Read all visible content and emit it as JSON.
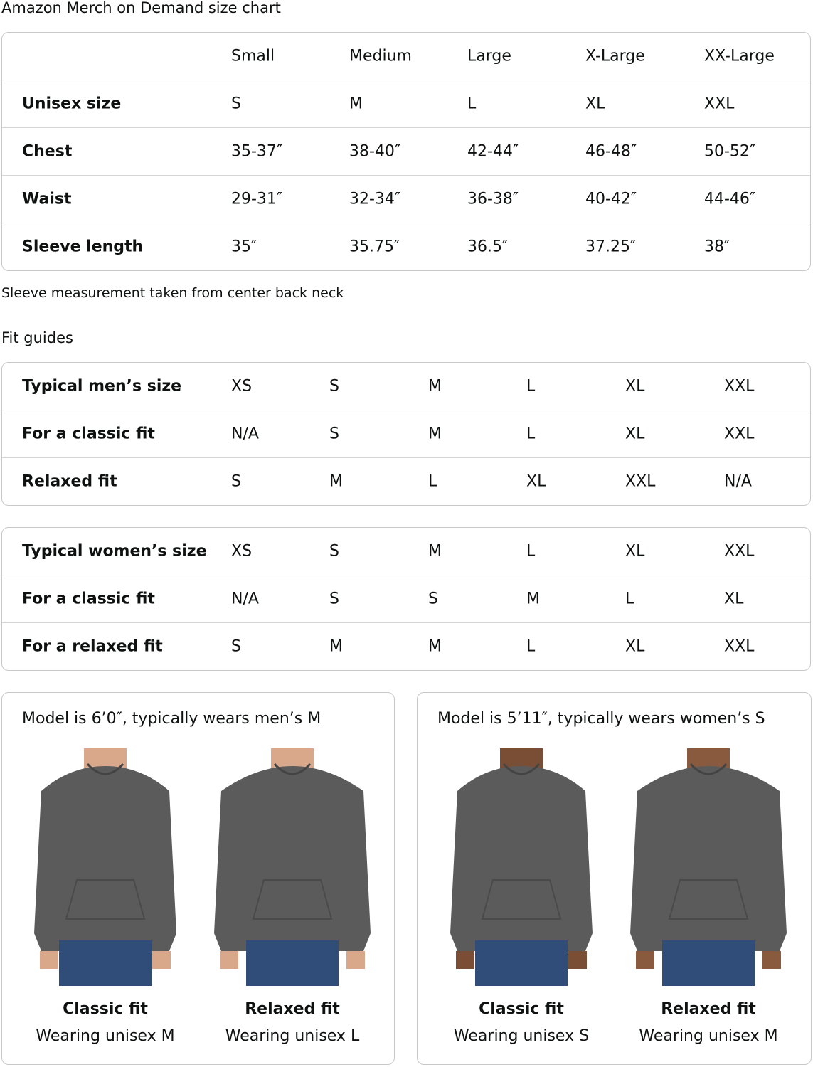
{
  "title": "Amazon Merch on Demand size chart",
  "size_chart": {
    "headers": [
      "",
      "Small",
      "Medium",
      "Large",
      "X-Large",
      "XX-Large"
    ],
    "rows": [
      {
        "label": "Unisex size",
        "values": [
          "S",
          "M",
          "L",
          "XL",
          "XXL"
        ]
      },
      {
        "label": "Chest",
        "values": [
          "35-37″",
          "38-40″",
          "42-44″",
          "46-48″",
          "50-52″"
        ]
      },
      {
        "label": "Waist",
        "values": [
          "29-31″",
          "32-34″",
          "36-38″",
          "40-42″",
          "44-46″"
        ]
      },
      {
        "label": "Sleeve length",
        "values": [
          "35″",
          "35.75″",
          "36.5″",
          "37.25″",
          "38″"
        ]
      }
    ]
  },
  "note": "Sleeve measurement taken from center back neck",
  "fit_guides_title": "Fit guides",
  "mens_fit": [
    {
      "label": "Typical men’s size",
      "values": [
        "XS",
        "S",
        "M",
        "L",
        "XL",
        "XXL"
      ]
    },
    {
      "label": "For a classic fit",
      "values": [
        "N/A",
        "S",
        "M",
        "L",
        "XL",
        "XXL"
      ]
    },
    {
      "label": "Relaxed fit",
      "values": [
        "S",
        "M",
        "L",
        "XL",
        "XXL",
        "N/A"
      ]
    }
  ],
  "womens_fit": [
    {
      "label": "Typical women’s size",
      "values": [
        "XS",
        "S",
        "M",
        "L",
        "XL",
        "XXL"
      ]
    },
    {
      "label": "For a classic fit",
      "values": [
        "N/A",
        "S",
        "S",
        "M",
        "L",
        "XL"
      ]
    },
    {
      "label": "For a relaxed fit",
      "values": [
        "S",
        "M",
        "M",
        "L",
        "XL",
        "XXL"
      ]
    }
  ],
  "models": [
    {
      "caption": "Model is 6’0″, typically wears men’s M",
      "figures": [
        {
          "fit": "Classic fit",
          "wearing": "Wearing unisex M"
        },
        {
          "fit": "Relaxed fit",
          "wearing": "Wearing unisex L"
        }
      ]
    },
    {
      "caption": "Model is 5’11″, typically wears women’s S",
      "figures": [
        {
          "fit": "Classic fit",
          "wearing": "Wearing unisex S"
        },
        {
          "fit": "Relaxed fit",
          "wearing": "Wearing unisex M"
        }
      ]
    }
  ],
  "colors": {
    "hoodie": "#5b5b5b",
    "jeans": "#2f4d78",
    "border": "#c8c8c8"
  }
}
